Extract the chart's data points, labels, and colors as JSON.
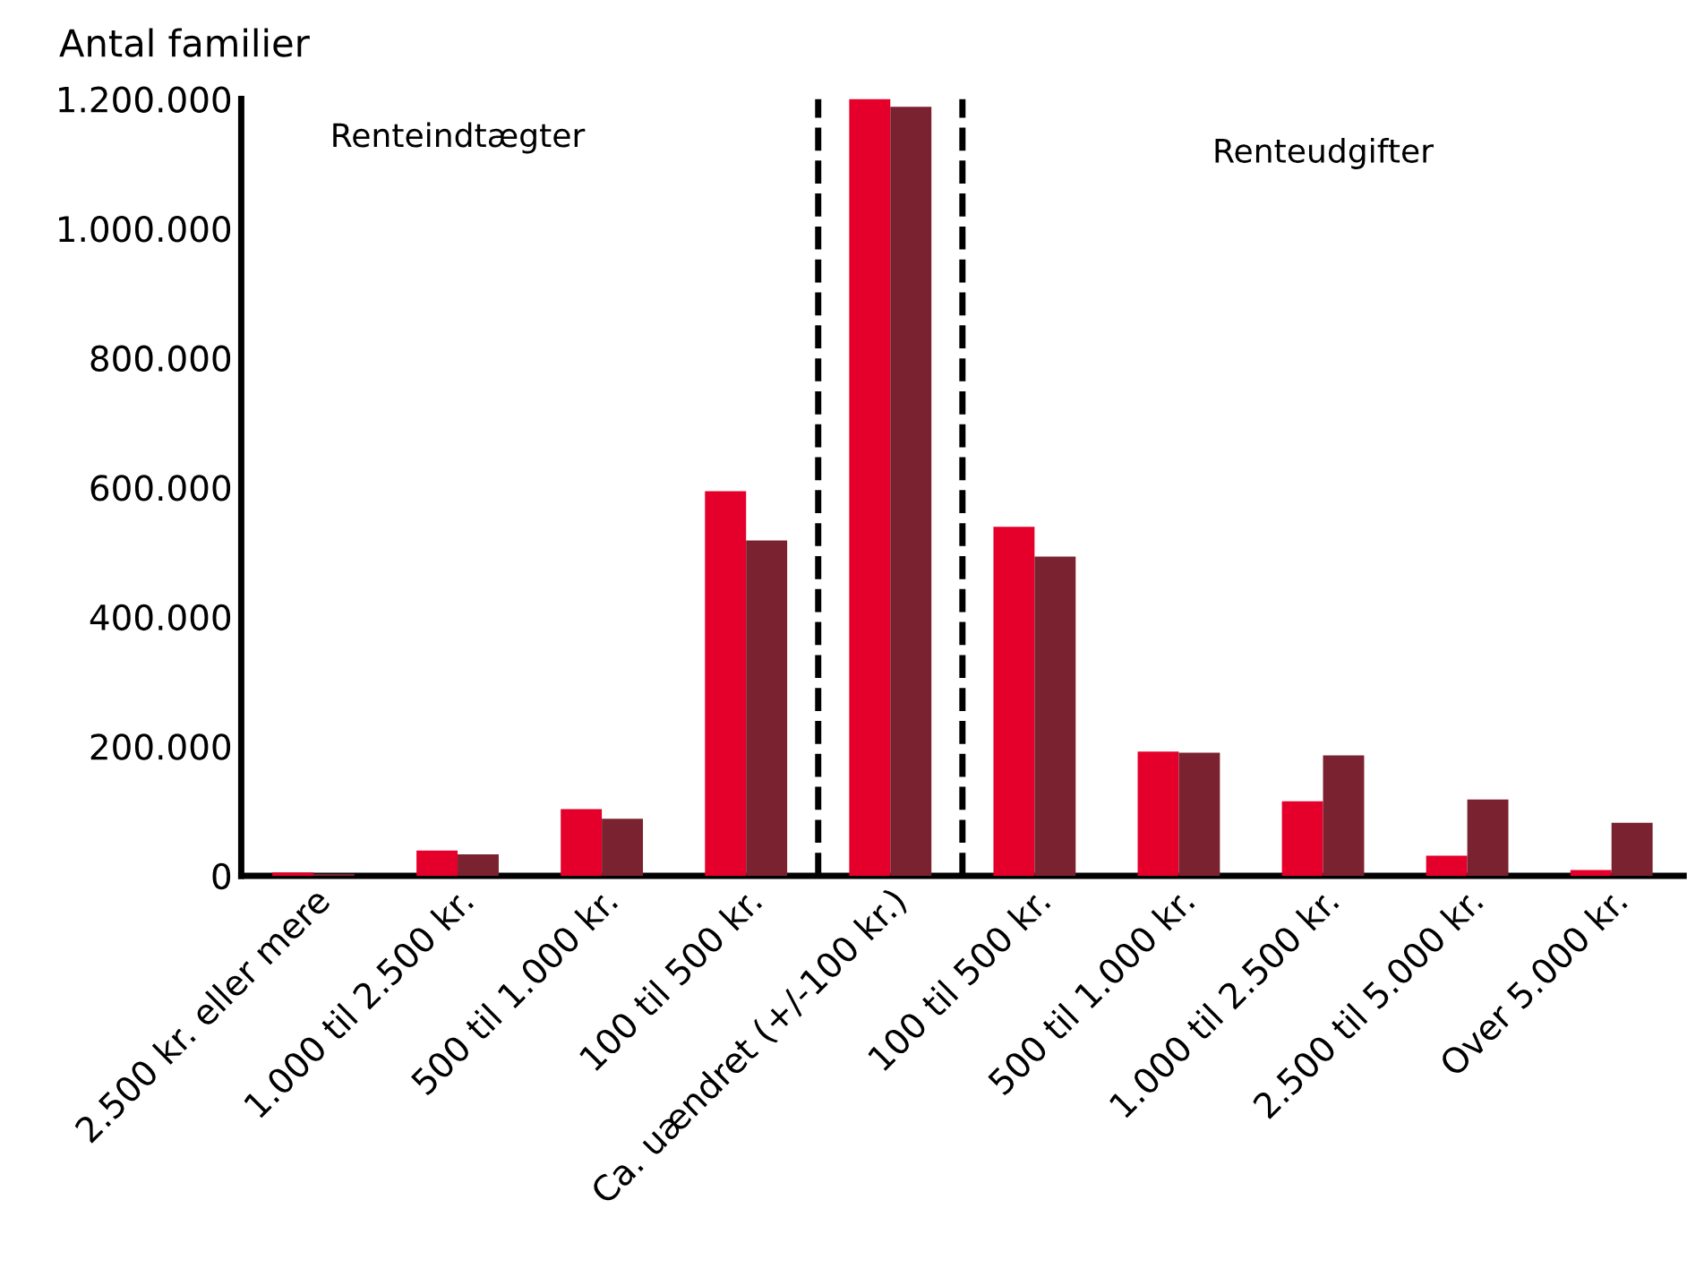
{
  "chart_data": {
    "type": "bar",
    "ylabel": "Antal familier",
    "categories": [
      "2.500 kr. eller mere",
      "1.000 til 2.500 kr.",
      "500 til 1.000 kr.",
      "100 til 500 kr.",
      "Ca. uændret (+/-100 kr.)",
      "100 til 500 kr.",
      "500 til 1.000 kr.",
      "1.000 til 2.500 kr.",
      "2.500 til 5.000 kr.",
      "Over 5.000 kr."
    ],
    "series": [
      {
        "color": "#e4002b",
        "values": [
          5000,
          39000,
          103000,
          594000,
          1200000,
          539000,
          192000,
          115000,
          31000,
          9000
        ]
      },
      {
        "color": "#7a2230",
        "values": [
          3000,
          33000,
          88000,
          518000,
          1188000,
          493000,
          190000,
          186000,
          118000,
          82000
        ]
      }
    ],
    "ylim": [
      0,
      1200000
    ],
    "yticks": [
      0,
      {
        "value": 200000,
        "label": "200.000"
      },
      {
        "value": 400000,
        "label": "400.000"
      },
      {
        "value": 600000,
        "label": "600.000"
      },
      {
        "value": 800000,
        "label": "800.000"
      },
      {
        "value": 1000000,
        "label": "1.000.000"
      },
      {
        "value": 1200000,
        "label": "1.200.000"
      }
    ],
    "annotations": [
      "Renteindtægter",
      "Renteudgifter"
    ],
    "grid": false
  }
}
